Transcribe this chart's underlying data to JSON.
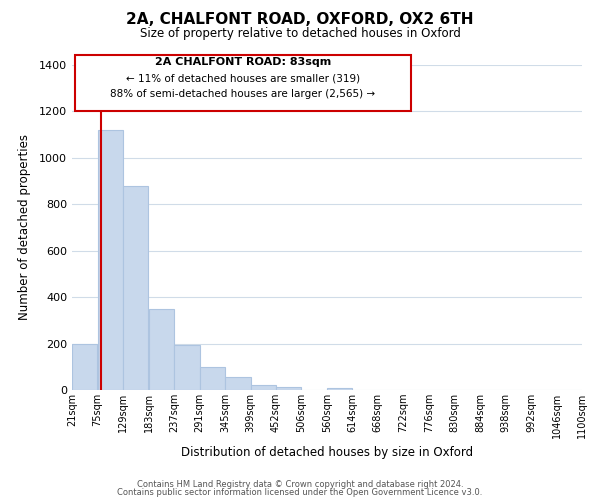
{
  "title": "2A, CHALFONT ROAD, OXFORD, OX2 6TH",
  "subtitle": "Size of property relative to detached houses in Oxford",
  "xlabel": "Distribution of detached houses by size in Oxford",
  "ylabel": "Number of detached properties",
  "bar_left_edges": [
    21,
    75,
    129,
    183,
    237,
    291,
    345,
    399,
    452,
    506,
    560,
    614,
    668,
    722,
    776,
    830,
    884,
    938,
    992,
    1046
  ],
  "bar_heights": [
    200,
    1120,
    880,
    350,
    195,
    100,
    55,
    20,
    15,
    0,
    10,
    0,
    0,
    0,
    0,
    0,
    0,
    0,
    0,
    0
  ],
  "bin_width": 54,
  "bar_color": "#c8d8ec",
  "bar_edgecolor": "#adc4e0",
  "tick_labels": [
    "21sqm",
    "75sqm",
    "129sqm",
    "183sqm",
    "237sqm",
    "291sqm",
    "345sqm",
    "399sqm",
    "452sqm",
    "506sqm",
    "560sqm",
    "614sqm",
    "668sqm",
    "722sqm",
    "776sqm",
    "830sqm",
    "884sqm",
    "938sqm",
    "992sqm",
    "1046sqm",
    "1100sqm"
  ],
  "property_line_x": 83,
  "property_line_color": "#cc0000",
  "ylim": [
    0,
    1400
  ],
  "yticks": [
    0,
    200,
    400,
    600,
    800,
    1000,
    1200,
    1400
  ],
  "annotation_title": "2A CHALFONT ROAD: 83sqm",
  "annotation_line1": "← 11% of detached houses are smaller (319)",
  "annotation_line2": "88% of semi-detached houses are larger (2,565) →",
  "annotation_box_color": "#ffffff",
  "annotation_box_edgecolor": "#cc0000",
  "footer_line1": "Contains HM Land Registry data © Crown copyright and database right 2024.",
  "footer_line2": "Contains public sector information licensed under the Open Government Licence v3.0.",
  "background_color": "#ffffff",
  "grid_color": "#d0dce8"
}
